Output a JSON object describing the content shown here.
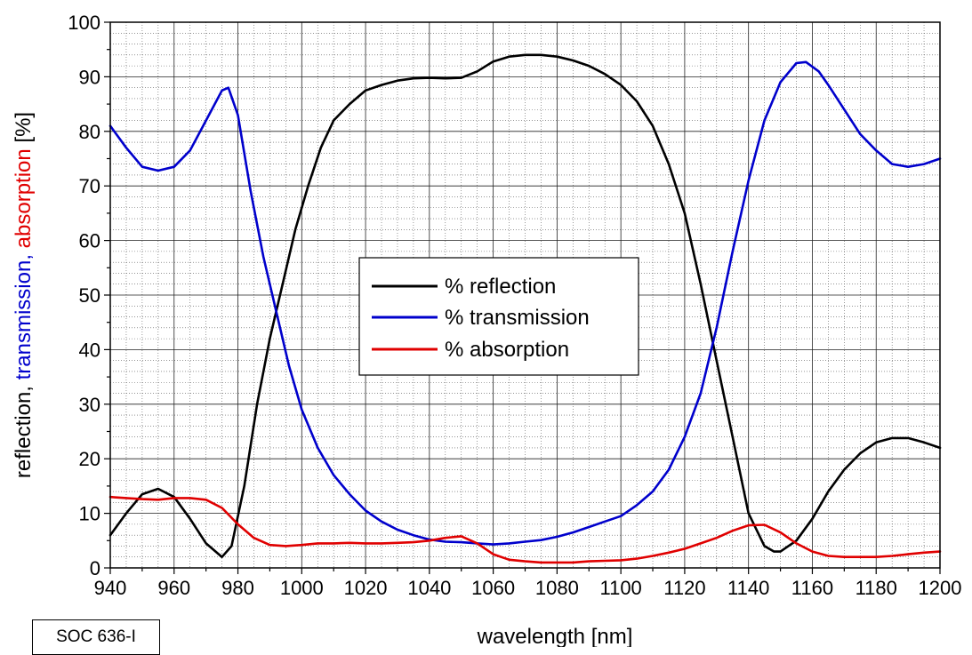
{
  "chart_data": {
    "type": "line",
    "title": "",
    "xlabel": "wavelength [nm]",
    "ylabel_parts": [
      {
        "text": "reflection, ",
        "color": "#000000"
      },
      {
        "text": "transmission, ",
        "color": "#0000cc"
      },
      {
        "text": "absorption",
        "color": "#e00000"
      },
      {
        "text": " [%]",
        "color": "#000000"
      }
    ],
    "xlim": [
      940,
      1200
    ],
    "ylim": [
      0,
      100
    ],
    "x_ticks": [
      940,
      960,
      980,
      1000,
      1020,
      1040,
      1060,
      1080,
      1100,
      1120,
      1140,
      1160,
      1180,
      1200
    ],
    "y_ticks": [
      0,
      10,
      20,
      30,
      40,
      50,
      60,
      70,
      80,
      90,
      100
    ],
    "grid": true,
    "legend_position": "center",
    "series": [
      {
        "name": "% reflection",
        "color": "#000000",
        "points": [
          [
            940,
            6
          ],
          [
            945,
            10
          ],
          [
            950,
            13.5
          ],
          [
            955,
            14.5
          ],
          [
            960,
            13
          ],
          [
            965,
            9
          ],
          [
            970,
            4.5
          ],
          [
            975,
            2
          ],
          [
            978,
            4
          ],
          [
            982,
            15
          ],
          [
            986,
            30
          ],
          [
            990,
            42
          ],
          [
            994,
            52
          ],
          [
            998,
            62
          ],
          [
            1002,
            70
          ],
          [
            1006,
            77
          ],
          [
            1010,
            82
          ],
          [
            1015,
            85
          ],
          [
            1020,
            87.5
          ],
          [
            1025,
            88.5
          ],
          [
            1030,
            89.3
          ],
          [
            1035,
            89.7
          ],
          [
            1040,
            89.8
          ],
          [
            1045,
            89.7
          ],
          [
            1050,
            89.8
          ],
          [
            1055,
            91
          ],
          [
            1060,
            92.8
          ],
          [
            1065,
            93.7
          ],
          [
            1070,
            94
          ],
          [
            1075,
            94
          ],
          [
            1080,
            93.7
          ],
          [
            1085,
            93
          ],
          [
            1090,
            92
          ],
          [
            1095,
            90.5
          ],
          [
            1100,
            88.5
          ],
          [
            1105,
            85.5
          ],
          [
            1110,
            81
          ],
          [
            1115,
            74
          ],
          [
            1120,
            65
          ],
          [
            1125,
            52
          ],
          [
            1130,
            38
          ],
          [
            1135,
            24
          ],
          [
            1140,
            10
          ],
          [
            1145,
            4
          ],
          [
            1148,
            3
          ],
          [
            1150,
            3
          ],
          [
            1155,
            5
          ],
          [
            1160,
            9
          ],
          [
            1165,
            14
          ],
          [
            1170,
            18
          ],
          [
            1175,
            21
          ],
          [
            1180,
            23
          ],
          [
            1185,
            23.8
          ],
          [
            1190,
            23.8
          ],
          [
            1195,
            23
          ],
          [
            1200,
            22
          ]
        ]
      },
      {
        "name": "% transmission",
        "color": "#0000cc",
        "points": [
          [
            940,
            81
          ],
          [
            945,
            77
          ],
          [
            950,
            73.5
          ],
          [
            955,
            72.8
          ],
          [
            960,
            73.5
          ],
          [
            965,
            76.5
          ],
          [
            970,
            82
          ],
          [
            975,
            87.5
          ],
          [
            977,
            88
          ],
          [
            980,
            83
          ],
          [
            984,
            69
          ],
          [
            988,
            57
          ],
          [
            992,
            47
          ],
          [
            996,
            37
          ],
          [
            1000,
            29
          ],
          [
            1005,
            22
          ],
          [
            1010,
            17
          ],
          [
            1015,
            13.5
          ],
          [
            1020,
            10.5
          ],
          [
            1025,
            8.5
          ],
          [
            1030,
            7
          ],
          [
            1035,
            6
          ],
          [
            1040,
            5.2
          ],
          [
            1045,
            4.8
          ],
          [
            1050,
            4.7
          ],
          [
            1055,
            4.5
          ],
          [
            1060,
            4.3
          ],
          [
            1065,
            4.5
          ],
          [
            1070,
            4.8
          ],
          [
            1075,
            5.1
          ],
          [
            1080,
            5.7
          ],
          [
            1085,
            6.5
          ],
          [
            1090,
            7.5
          ],
          [
            1095,
            8.5
          ],
          [
            1100,
            9.5
          ],
          [
            1105,
            11.5
          ],
          [
            1110,
            14
          ],
          [
            1115,
            18
          ],
          [
            1120,
            24
          ],
          [
            1125,
            32
          ],
          [
            1130,
            44
          ],
          [
            1135,
            58
          ],
          [
            1140,
            71
          ],
          [
            1145,
            82
          ],
          [
            1150,
            89
          ],
          [
            1155,
            92.5
          ],
          [
            1158,
            92.7
          ],
          [
            1162,
            91
          ],
          [
            1165,
            88.5
          ],
          [
            1170,
            84
          ],
          [
            1175,
            79.5
          ],
          [
            1180,
            76.5
          ],
          [
            1185,
            74
          ],
          [
            1190,
            73.5
          ],
          [
            1195,
            74
          ],
          [
            1200,
            75
          ]
        ]
      },
      {
        "name": "% absorption",
        "color": "#e00000",
        "points": [
          [
            940,
            13
          ],
          [
            945,
            12.8
          ],
          [
            950,
            12.6
          ],
          [
            955,
            12.5
          ],
          [
            960,
            12.8
          ],
          [
            965,
            12.8
          ],
          [
            970,
            12.5
          ],
          [
            975,
            11
          ],
          [
            980,
            8
          ],
          [
            985,
            5.5
          ],
          [
            990,
            4.2
          ],
          [
            995,
            4
          ],
          [
            1000,
            4.2
          ],
          [
            1005,
            4.5
          ],
          [
            1010,
            4.5
          ],
          [
            1015,
            4.6
          ],
          [
            1020,
            4.5
          ],
          [
            1025,
            4.5
          ],
          [
            1030,
            4.6
          ],
          [
            1035,
            4.7
          ],
          [
            1040,
            5
          ],
          [
            1045,
            5.5
          ],
          [
            1050,
            5.8
          ],
          [
            1055,
            4.5
          ],
          [
            1060,
            2.5
          ],
          [
            1065,
            1.5
          ],
          [
            1070,
            1.2
          ],
          [
            1075,
            1
          ],
          [
            1080,
            1
          ],
          [
            1085,
            1
          ],
          [
            1090,
            1.2
          ],
          [
            1095,
            1.3
          ],
          [
            1100,
            1.4
          ],
          [
            1105,
            1.7
          ],
          [
            1110,
            2.2
          ],
          [
            1115,
            2.8
          ],
          [
            1120,
            3.5
          ],
          [
            1125,
            4.5
          ],
          [
            1130,
            5.5
          ],
          [
            1135,
            6.8
          ],
          [
            1140,
            7.8
          ],
          [
            1145,
            7.9
          ],
          [
            1150,
            6.5
          ],
          [
            1155,
            4.5
          ],
          [
            1160,
            3
          ],
          [
            1165,
            2.2
          ],
          [
            1170,
            2
          ],
          [
            1175,
            2
          ],
          [
            1180,
            2
          ],
          [
            1185,
            2.2
          ],
          [
            1190,
            2.5
          ],
          [
            1195,
            2.8
          ],
          [
            1200,
            3
          ]
        ]
      }
    ]
  },
  "tag": {
    "label": "SOC 636-I"
  }
}
